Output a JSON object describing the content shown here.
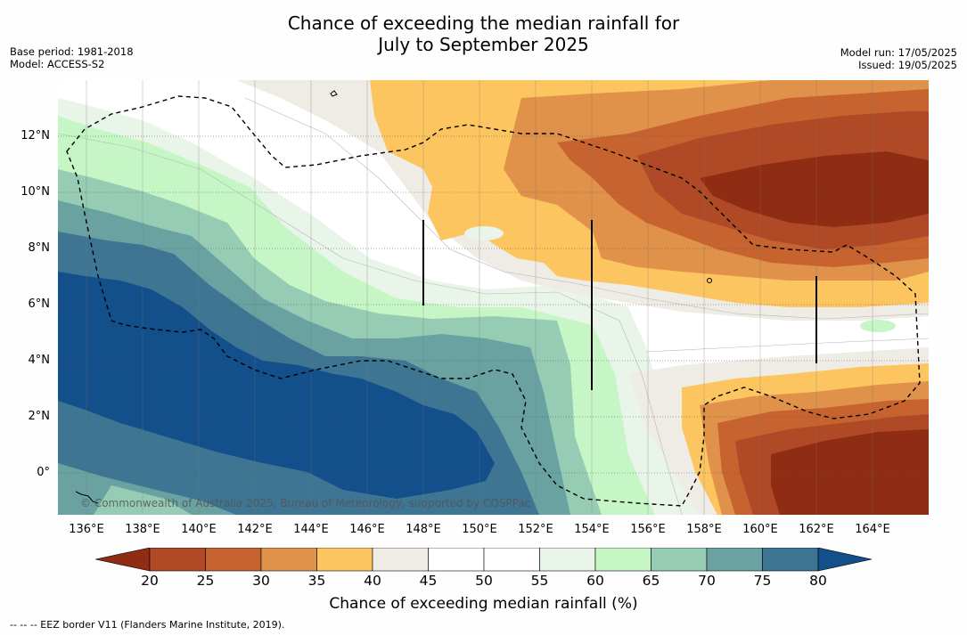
{
  "title": {
    "line1": "Chance of exceeding the median rainfall for",
    "line2": "July to September 2025"
  },
  "meta_left": {
    "base_period": "Base period: 1981-2018",
    "model": "Model: ACCESS-S2"
  },
  "meta_right": {
    "model_run": "Model run: 17/05/2025",
    "issued": "Issued: 19/05/2025"
  },
  "map": {
    "lat_labels": [
      "12°N",
      "10°N",
      "8°N",
      "6°N",
      "4°N",
      "2°N",
      "0°"
    ],
    "lon_labels": [
      "136°E",
      "138°E",
      "140°E",
      "142°E",
      "144°E",
      "146°E",
      "148°E",
      "150°E",
      "152°E",
      "154°E",
      "156°E",
      "158°E",
      "160°E",
      "162°E",
      "164°E"
    ],
    "copyright": "© Commonwealth of Australia 2025, Bureau of Meteorology, supported by COSPPac",
    "shading_categories": [
      {
        "range": "<20",
        "color": "#8f2c14"
      },
      {
        "range": "20-25",
        "color": "#b04a26"
      },
      {
        "range": "25-30",
        "color": "#c7632f"
      },
      {
        "range": "30-35",
        "color": "#e0914a"
      },
      {
        "range": "35-40",
        "color": "#fcc55f"
      },
      {
        "range": "40-45",
        "color": "#efebe5"
      },
      {
        "range": "45-50",
        "color": "#ffffff"
      },
      {
        "range": "50-55",
        "color": "#ffffff"
      },
      {
        "range": "55-60",
        "color": "#e8f5e8"
      },
      {
        "range": "60-65",
        "color": "#c6f6c6"
      },
      {
        "range": "65-70",
        "color": "#97ccb4"
      },
      {
        "range": "70-75",
        "color": "#6aa2a2"
      },
      {
        "range": "75-80",
        "color": "#3e7593"
      },
      {
        "range": ">80",
        "color": "#134f8a"
      }
    ]
  },
  "colorbar": {
    "ticks": [
      "20",
      "25",
      "30",
      "35",
      "40",
      "45",
      "50",
      "55",
      "60",
      "65",
      "70",
      "75",
      "80"
    ],
    "label": "Chance of exceeding median rainfall (%)"
  },
  "footer": "--  --  -- EEZ border V11 (Flanders Marine Institute, 2019)."
}
